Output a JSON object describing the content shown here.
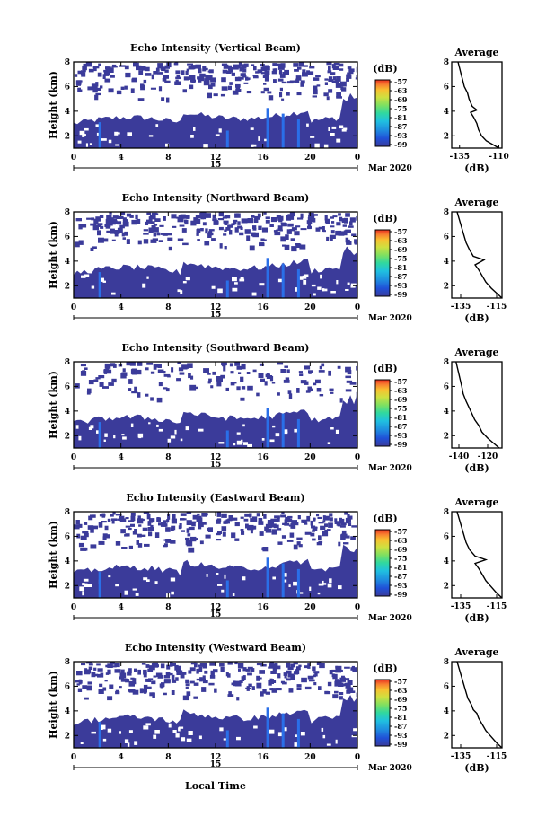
{
  "colormap": [
    "#3b3b9a",
    "#2050d8",
    "#1f8fe0",
    "#20c0e0",
    "#30d8a0",
    "#80e060",
    "#d0e040",
    "#f8c030",
    "#f88030",
    "#e83020"
  ],
  "panel_color": "#3b3b9a",
  "axes_common": {
    "x_ticks": [
      "0",
      "4",
      "8",
      "12",
      "16",
      "20",
      "0"
    ],
    "day_label": "15",
    "month_label": "Mar 2020",
    "y_ticks": [
      "2",
      "4",
      "6",
      "8"
    ],
    "ylabel": "Height (km)",
    "colorbar_unit": "(dB)",
    "colorbar_labels": [
      "-57",
      "-63",
      "-69",
      "-75",
      "-81",
      "-87",
      "-93",
      "-99"
    ],
    "xlabel": "Local Time",
    "avg_title": "Average",
    "avg_unit": "(dB)"
  },
  "chart_data": [
    {
      "type": "heatmap",
      "title": "Echo Intensity (Vertical Beam)",
      "xlim": [
        0,
        24
      ],
      "ylim": [
        1,
        8
      ],
      "avg_ticks": [
        "-135",
        "-110"
      ],
      "avg_xlim": [
        -140,
        -108
      ],
      "avg_profile": [
        [
          -110,
          1
        ],
        [
          -114,
          1.3
        ],
        [
          -118,
          1.6
        ],
        [
          -121,
          2
        ],
        [
          -123,
          2.5
        ],
        [
          -124,
          3
        ],
        [
          -126,
          3.5
        ],
        [
          -128,
          3.9
        ],
        [
          -124,
          4.1
        ],
        [
          -127,
          4.4
        ],
        [
          -129,
          5
        ],
        [
          -130,
          5.5
        ],
        [
          -132,
          6
        ],
        [
          -133,
          6.5
        ],
        [
          -134,
          7
        ],
        [
          -135,
          7.5
        ],
        [
          -136,
          8
        ]
      ]
    },
    {
      "type": "heatmap",
      "title": "Echo Intensity (Northward Beam)",
      "xlim": [
        0,
        24
      ],
      "ylim": [
        1,
        8
      ],
      "avg_ticks": [
        "-135",
        "-115"
      ],
      "avg_xlim": [
        -140,
        -112
      ],
      "avg_profile": [
        [
          -112,
          1
        ],
        [
          -115,
          1.4
        ],
        [
          -118,
          1.8
        ],
        [
          -121,
          2.3
        ],
        [
          -123,
          2.8
        ],
        [
          -125,
          3.3
        ],
        [
          -127,
          3.7
        ],
        [
          -122,
          4.1
        ],
        [
          -128,
          4.4
        ],
        [
          -130,
          4.9
        ],
        [
          -132,
          5.5
        ],
        [
          -133,
          6
        ],
        [
          -134,
          6.5
        ],
        [
          -135,
          7
        ],
        [
          -136,
          7.5
        ],
        [
          -137,
          8
        ]
      ]
    },
    {
      "type": "heatmap",
      "title": "Echo Intensity (Southward Beam)",
      "xlim": [
        0,
        24
      ],
      "ylim": [
        1,
        8
      ],
      "avg_ticks": [
        "-140",
        "-120"
      ],
      "avg_xlim": [
        -145,
        -110
      ],
      "avg_profile": [
        [
          -112,
          1
        ],
        [
          -116,
          1.4
        ],
        [
          -120,
          1.8
        ],
        [
          -124,
          2.3
        ],
        [
          -126,
          2.8
        ],
        [
          -129,
          3.3
        ],
        [
          -131,
          3.8
        ],
        [
          -133,
          4.3
        ],
        [
          -135,
          4.8
        ],
        [
          -137,
          5.4
        ],
        [
          -138,
          6
        ],
        [
          -139,
          6.5
        ],
        [
          -140,
          7
        ],
        [
          -141,
          7.5
        ],
        [
          -142,
          8
        ]
      ]
    },
    {
      "type": "heatmap",
      "title": "Echo Intensity (Eastward Beam)",
      "xlim": [
        0,
        24
      ],
      "ylim": [
        1,
        8
      ],
      "avg_ticks": [
        "-135",
        "-115"
      ],
      "avg_xlim": [
        -140,
        -112
      ],
      "avg_profile": [
        [
          -112,
          1
        ],
        [
          -115,
          1.4
        ],
        [
          -118,
          1.9
        ],
        [
          -121,
          2.4
        ],
        [
          -123,
          2.9
        ],
        [
          -125,
          3.4
        ],
        [
          -127,
          3.8
        ],
        [
          -121,
          4.1
        ],
        [
          -127,
          4.4
        ],
        [
          -130,
          4.9
        ],
        [
          -132,
          5.5
        ],
        [
          -133,
          6
        ],
        [
          -134,
          6.5
        ],
        [
          -135,
          7
        ],
        [
          -136,
          7.5
        ],
        [
          -137,
          8
        ]
      ]
    },
    {
      "type": "heatmap",
      "title": "Echo Intensity (Westward Beam)",
      "xlim": [
        0,
        24
      ],
      "ylim": [
        1,
        8
      ],
      "avg_ticks": [
        "-135",
        "-115"
      ],
      "avg_xlim": [
        -140,
        -112
      ],
      "avg_profile": [
        [
          -112,
          1
        ],
        [
          -115,
          1.4
        ],
        [
          -118,
          1.9
        ],
        [
          -121,
          2.4
        ],
        [
          -123,
          2.9
        ],
        [
          -125,
          3.4
        ],
        [
          -126,
          3.8
        ],
        [
          -128,
          4.1
        ],
        [
          -129,
          4.5
        ],
        [
          -131,
          5
        ],
        [
          -132,
          5.5
        ],
        [
          -133,
          6
        ],
        [
          -134,
          6.5
        ],
        [
          -135,
          7
        ],
        [
          -136,
          7.5
        ],
        [
          -137,
          8
        ]
      ]
    }
  ]
}
